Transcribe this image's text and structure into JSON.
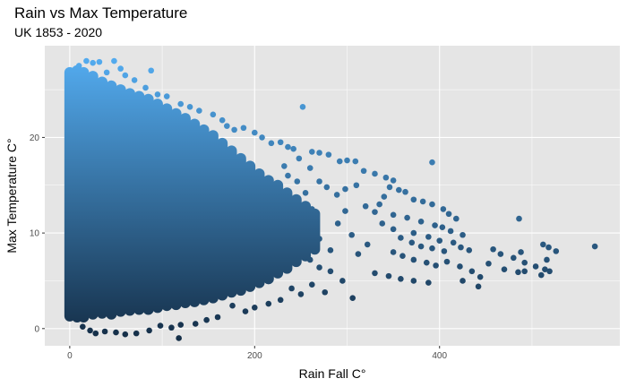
{
  "chart_data": {
    "type": "scatter",
    "title": "Rain vs Max Temperature",
    "subtitle": "UK 1853 - 2020",
    "xlabel": "Rain Fall C°",
    "ylabel": "Max Temperature C°",
    "xlim": [
      -27,
      595
    ],
    "ylim": [
      -1.8,
      29.6
    ],
    "x_ticks": [
      0,
      200,
      400
    ],
    "y_ticks": [
      0,
      10,
      20
    ],
    "x_tick_labels": [
      "0",
      "200",
      "400"
    ],
    "y_tick_labels": [
      "0",
      "10",
      "20"
    ],
    "x_minor_grid": [
      100,
      300,
      500
    ],
    "y_minor_grid": [
      5,
      15,
      25
    ],
    "grid": true,
    "panel_color": "#e5e5e5",
    "grid_color": "#ffffff",
    "color_scale": {
      "low": "#132b43",
      "high": "#56b1f7",
      "mapped_to": "y"
    },
    "points": [
      [
        10,
        27.5
      ],
      [
        18,
        28.0
      ],
      [
        25,
        27.8
      ],
      [
        32,
        27.9
      ],
      [
        48,
        28.0
      ],
      [
        55,
        27.2
      ],
      [
        88,
        27.0
      ],
      [
        60,
        26.5
      ],
      [
        15,
        25.8
      ],
      [
        40,
        26.8
      ],
      [
        70,
        26.0
      ],
      [
        82,
        25.2
      ],
      [
        95,
        24.5
      ],
      [
        105,
        24.3
      ],
      [
        252,
        23.2
      ],
      [
        120,
        23.5
      ],
      [
        130,
        23.2
      ],
      [
        140,
        22.8
      ],
      [
        155,
        22.4
      ],
      [
        165,
        21.8
      ],
      [
        170,
        21.2
      ],
      [
        178,
        20.8
      ],
      [
        188,
        21.0
      ],
      [
        200,
        20.5
      ],
      [
        208,
        20.0
      ],
      [
        218,
        19.4
      ],
      [
        228,
        19.5
      ],
      [
        236,
        19.0
      ],
      [
        242,
        18.8
      ],
      [
        262,
        18.5
      ],
      [
        270,
        18.4
      ],
      [
        280,
        18.2
      ],
      [
        292,
        17.5
      ],
      [
        300,
        17.6
      ],
      [
        309,
        17.5
      ],
      [
        392,
        17.4
      ],
      [
        318,
        16.5
      ],
      [
        330,
        16.2
      ],
      [
        342,
        15.8
      ],
      [
        350,
        15.5
      ],
      [
        310,
        15.0
      ],
      [
        270,
        15.4
      ],
      [
        278,
        14.8
      ],
      [
        289,
        14.0
      ],
      [
        298,
        14.6
      ],
      [
        346,
        14.8
      ],
      [
        356,
        14.5
      ],
      [
        363,
        14.3
      ],
      [
        372,
        13.5
      ],
      [
        382,
        13.3
      ],
      [
        392,
        13.0
      ],
      [
        404,
        12.5
      ],
      [
        410,
        12.0
      ],
      [
        418,
        11.5
      ],
      [
        340,
        13.8
      ],
      [
        335,
        13.0
      ],
      [
        320,
        12.8
      ],
      [
        330,
        12.2
      ],
      [
        350,
        11.9
      ],
      [
        365,
        11.6
      ],
      [
        380,
        11.2
      ],
      [
        395,
        10.8
      ],
      [
        403,
        10.6
      ],
      [
        412,
        10.2
      ],
      [
        425,
        9.8
      ],
      [
        338,
        11.0
      ],
      [
        350,
        10.4
      ],
      [
        372,
        10.0
      ],
      [
        388,
        9.6
      ],
      [
        400,
        9.2
      ],
      [
        415,
        9.0
      ],
      [
        423,
        8.5
      ],
      [
        432,
        8.2
      ],
      [
        358,
        9.5
      ],
      [
        370,
        9.0
      ],
      [
        380,
        8.6
      ],
      [
        392,
        8.4
      ],
      [
        405,
        8.1
      ],
      [
        486,
        11.5
      ],
      [
        458,
        8.3
      ],
      [
        466,
        7.8
      ],
      [
        488,
        8.0
      ],
      [
        518,
        8.5
      ],
      [
        526,
        8.1
      ],
      [
        512,
        8.8
      ],
      [
        568,
        8.6
      ],
      [
        480,
        7.4
      ],
      [
        492,
        6.9
      ],
      [
        408,
        7.0
      ],
      [
        422,
        6.5
      ],
      [
        435,
        6.0
      ],
      [
        444,
        5.4
      ],
      [
        453,
        6.8
      ],
      [
        470,
        6.2
      ],
      [
        485,
        5.9
      ],
      [
        492,
        6.0
      ],
      [
        504,
        6.5
      ],
      [
        514,
        6.2
      ],
      [
        519,
        6.0
      ],
      [
        510,
        5.6
      ],
      [
        516,
        7.2
      ],
      [
        425,
        5.0
      ],
      [
        442,
        4.4
      ],
      [
        350,
        8.0
      ],
      [
        360,
        7.6
      ],
      [
        372,
        7.2
      ],
      [
        386,
        6.9
      ],
      [
        396,
        6.6
      ],
      [
        330,
        5.8
      ],
      [
        345,
        5.5
      ],
      [
        358,
        5.2
      ],
      [
        372,
        5.0
      ],
      [
        388,
        4.8
      ],
      [
        295,
        5.0
      ],
      [
        306,
        3.2
      ],
      [
        276,
        3.8
      ],
      [
        262,
        4.6
      ],
      [
        250,
        3.6
      ],
      [
        240,
        4.2
      ],
      [
        228,
        3.0
      ],
      [
        215,
        2.6
      ],
      [
        200,
        2.2
      ],
      [
        190,
        1.8
      ],
      [
        176,
        2.4
      ],
      [
        160,
        1.2
      ],
      [
        148,
        0.9
      ],
      [
        136,
        0.5
      ],
      [
        120,
        0.4
      ],
      [
        110,
        0.1
      ],
      [
        98,
        0.3
      ],
      [
        86,
        -0.2
      ],
      [
        72,
        -0.5
      ],
      [
        60,
        -0.6
      ],
      [
        50,
        -0.4
      ],
      [
        38,
        -0.3
      ],
      [
        28,
        -0.5
      ],
      [
        118,
        -1.0
      ],
      [
        14,
        0.2
      ],
      [
        22,
        -0.2
      ],
      [
        240,
        11.5
      ],
      [
        252,
        10.8
      ],
      [
        262,
        12.5
      ],
      [
        270,
        9.4
      ],
      [
        282,
        8.2
      ],
      [
        290,
        11.0
      ],
      [
        298,
        12.3
      ],
      [
        305,
        9.8
      ],
      [
        312,
        7.8
      ],
      [
        322,
        8.8
      ],
      [
        260,
        7.2
      ],
      [
        270,
        6.4
      ],
      [
        282,
        6.0
      ],
      [
        236,
        16.0
      ],
      [
        246,
        15.4
      ],
      [
        255,
        14.2
      ],
      [
        260,
        16.8
      ],
      [
        248,
        17.8
      ],
      [
        232,
        17.0
      ]
    ],
    "dense_bands": [
      [
        0,
        26.8,
        1.3
      ],
      [
        8,
        27.0,
        1.2
      ],
      [
        15,
        26.8,
        1.2
      ],
      [
        25,
        26.4,
        1.5
      ],
      [
        35,
        25.8,
        1.6
      ],
      [
        45,
        25.4,
        1.5
      ],
      [
        55,
        25.0,
        1.8
      ],
      [
        65,
        24.6,
        1.9
      ],
      [
        75,
        24.3,
        2.0
      ],
      [
        85,
        24.0,
        2.0
      ],
      [
        95,
        23.5,
        2.2
      ],
      [
        105,
        23.0,
        2.4
      ],
      [
        115,
        22.5,
        2.5
      ],
      [
        125,
        22.0,
        2.7
      ],
      [
        135,
        21.4,
        2.8
      ],
      [
        145,
        20.8,
        3.0
      ],
      [
        155,
        20.2,
        3.2
      ],
      [
        165,
        19.4,
        3.5
      ],
      [
        175,
        18.6,
        3.8
      ],
      [
        185,
        17.8,
        4.0
      ],
      [
        195,
        17.0,
        4.4
      ],
      [
        205,
        16.2,
        4.8
      ],
      [
        215,
        15.5,
        5.2
      ],
      [
        225,
        15.0,
        5.8
      ],
      [
        235,
        14.2,
        6.3
      ],
      [
        245,
        13.5,
        7.0
      ],
      [
        255,
        12.8,
        7.6
      ],
      [
        265,
        12.0,
        8.3
      ]
    ]
  }
}
